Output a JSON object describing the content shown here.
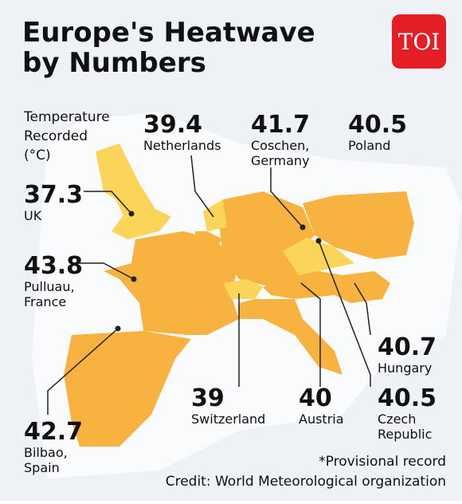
{
  "header": {
    "title": [
      "Europe's Heatwave",
      "by Numbers"
    ],
    "logo": "TOI"
  },
  "legend_label": [
    "Temperature",
    "Recorded",
    "(°C)"
  ],
  "locations": [
    {
      "value": 39.4,
      "place": [
        "Netherlands"
      ]
    },
    {
      "value": 41.7,
      "place": [
        "Coschen,",
        "Germany"
      ]
    },
    {
      "value": 40.5,
      "place": [
        "Poland"
      ]
    },
    {
      "value": 37.3,
      "place": [
        "UK"
      ]
    },
    {
      "value": 43.8,
      "place": [
        "Pulluau,",
        "France"
      ]
    },
    {
      "value": 40.7,
      "place": [
        "Hungary"
      ]
    },
    {
      "value": 39,
      "place": [
        "Switzerland"
      ]
    },
    {
      "value": 40,
      "place": [
        "Austria"
      ]
    },
    {
      "value": 40.5,
      "place": [
        "Czech",
        "Republic"
      ]
    },
    {
      "value": 42.7,
      "place": [
        "Bilbao,",
        "Spain"
      ]
    }
  ],
  "footnotes": [
    "*Provisional record",
    "Credit: World Meteorological organization"
  ]
}
